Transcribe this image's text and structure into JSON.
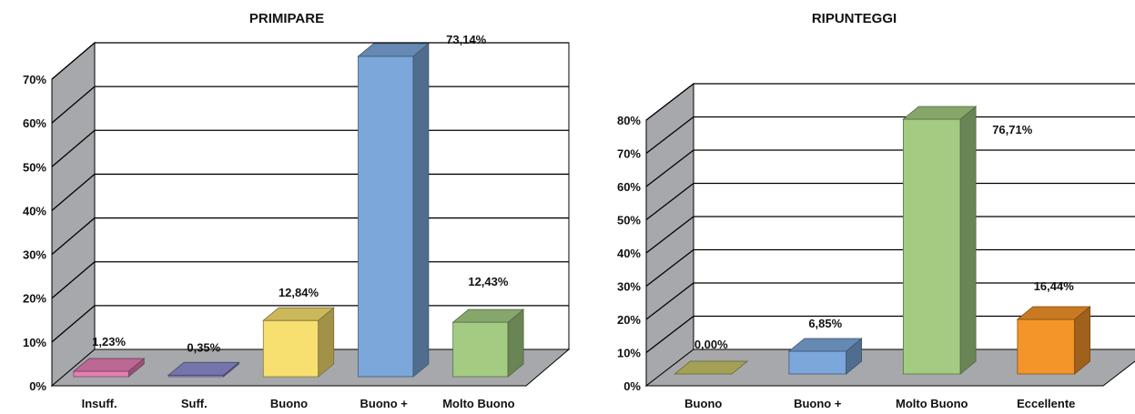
{
  "chart_data": [
    {
      "type": "bar",
      "title": "PRIMIPARE",
      "categories": [
        "Insuff.",
        "Suff.",
        "Buono",
        "Buono +",
        "Molto Buono"
      ],
      "values": [
        1.23,
        0.35,
        12.84,
        73.14,
        12.43
      ],
      "value_labels": [
        "1,23%",
        "0,35%",
        "12,84%",
        "73,14%",
        "12,43%"
      ],
      "colors": [
        "#e47fb4",
        "#8f8fd0",
        "#f7e06f",
        "#7ba7da",
        "#a3cc82"
      ],
      "ylim": [
        0,
        70
      ],
      "yticks": [
        "0%",
        "10%",
        "20%",
        "30%",
        "40%",
        "50%",
        "60%",
        "70%"
      ],
      "three_d": true,
      "grid": true,
      "legend": "none"
    },
    {
      "type": "bar",
      "title": "RIPUNTEGGI",
      "categories": [
        "Buono",
        "Buono +",
        "Molto Buono",
        "Eccellente"
      ],
      "values": [
        0.0,
        6.85,
        76.71,
        16.44
      ],
      "value_labels": [
        "0,00%",
        "6,85%",
        "76,71%",
        "16,44%"
      ],
      "colors": [
        "#c8c46a",
        "#7ba7da",
        "#a3cc82",
        "#f4952a"
      ],
      "ylim": [
        0,
        80
      ],
      "yticks": [
        "0%",
        "10%",
        "20%",
        "30%",
        "40%",
        "50%",
        "60%",
        "70%",
        "80%"
      ],
      "three_d": true,
      "grid": true,
      "legend": "none"
    }
  ]
}
